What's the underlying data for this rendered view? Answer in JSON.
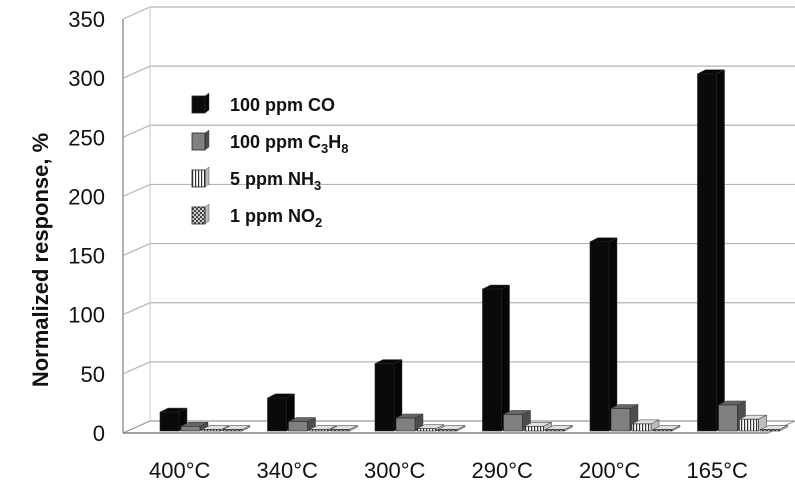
{
  "chart_data": {
    "type": "bar",
    "title": "",
    "xlabel": "",
    "ylabel": "Normalized response, %",
    "ylim": [
      0,
      350
    ],
    "yticks": [
      0,
      50,
      100,
      150,
      200,
      250,
      300,
      350
    ],
    "grid": true,
    "legend_position": "top-left",
    "categories": [
      "400°C",
      "340°C",
      "300°C",
      "290°C",
      "200°C",
      "165°C"
    ],
    "series": [
      {
        "name": "100 ppm CO",
        "legend_main": "100 ppm C",
        "legend_sub": "",
        "legend_tail": "O",
        "color": "#0a0a0a",
        "pattern": "solid",
        "values": [
          16,
          28,
          57,
          120,
          160,
          302
        ]
      },
      {
        "name": "100 ppm C3H8",
        "legend_main": "100 ppm C",
        "legend_sub": "3",
        "legend_tail": "H",
        "legend_sub2": "8",
        "color": "#808080",
        "pattern": "solid",
        "values": [
          4,
          8,
          11,
          14,
          19,
          22
        ]
      },
      {
        "name": "5 ppm NH3",
        "legend_main": "5 ppm NH",
        "legend_sub": "3",
        "legend_tail": "",
        "color": "#ffffff",
        "pattern": "vlines",
        "values": [
          1,
          1,
          2,
          4,
          6,
          10
        ]
      },
      {
        "name": "1 ppm NO2",
        "legend_main": "1 ppm NO",
        "legend_sub": "2",
        "legend_tail": "",
        "color": "#9a9a9a",
        "pattern": "checker",
        "values": [
          0.5,
          0.5,
          0.5,
          0.5,
          0.5,
          0.5
        ]
      }
    ]
  }
}
